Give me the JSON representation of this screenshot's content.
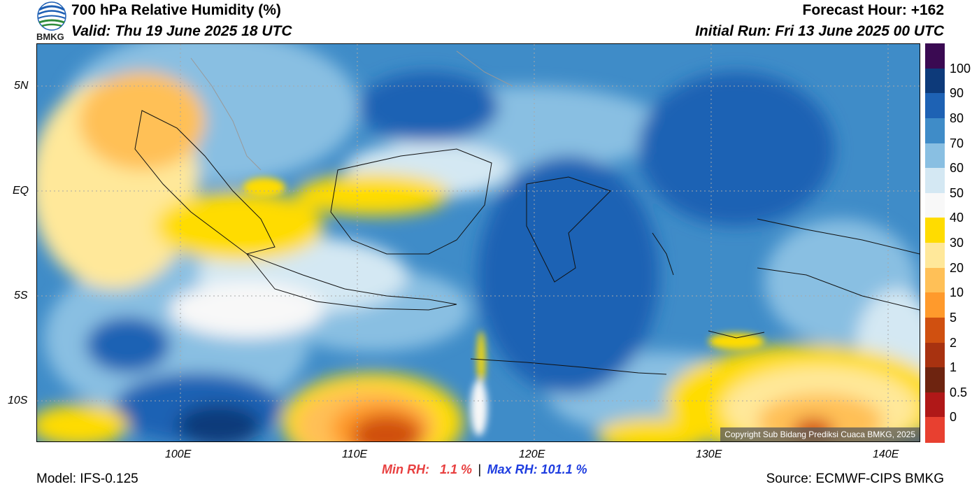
{
  "header": {
    "title": "700 hPa Relative Humidity (%)",
    "valid": "Valid: Thu 19 June 2025 18 UTC",
    "forecast_hour": "Forecast Hour: +162",
    "initial_run": "Initial Run: Fri 13 June 2025 00 UTC"
  },
  "logo": {
    "text": "BMKG",
    "colors": [
      "#1e5fb4",
      "#2e8b3a",
      "#ffffff"
    ]
  },
  "map": {
    "lat_labels": [
      "5N",
      "EQ",
      "5S",
      "10S"
    ],
    "lon_labels": [
      "100E",
      "110E",
      "120E",
      "130E",
      "140E"
    ],
    "copyright": "Copyright Sub Bidang Prediksi Cuaca BMKG, 2025"
  },
  "colorbar": {
    "labels": [
      "100",
      "90",
      "80",
      "70",
      "60",
      "50",
      "40",
      "30",
      "20",
      "10",
      "5",
      "2",
      "1",
      "0.5",
      "0"
    ],
    "colors": [
      "#3a0a52",
      "#0d3a7a",
      "#1e62b4",
      "#3f8cc8",
      "#89bfe2",
      "#d4e8f3",
      "#f8f8f8",
      "#ffdc00",
      "#ffe89a",
      "#ffc057",
      "#ff9a2c",
      "#d05010",
      "#a83210",
      "#6e2410",
      "#b01818",
      "#e84030"
    ]
  },
  "stats": {
    "min": "Min RH:   1.1 %",
    "separator": "|",
    "max": "Max RH: 101.1 %",
    "min_color": "#e84040",
    "max_color": "#1f3ee0"
  },
  "footer": {
    "model": "Model: IFS-0.125",
    "source": "Source: ECMWF-CIPS BMKG"
  }
}
